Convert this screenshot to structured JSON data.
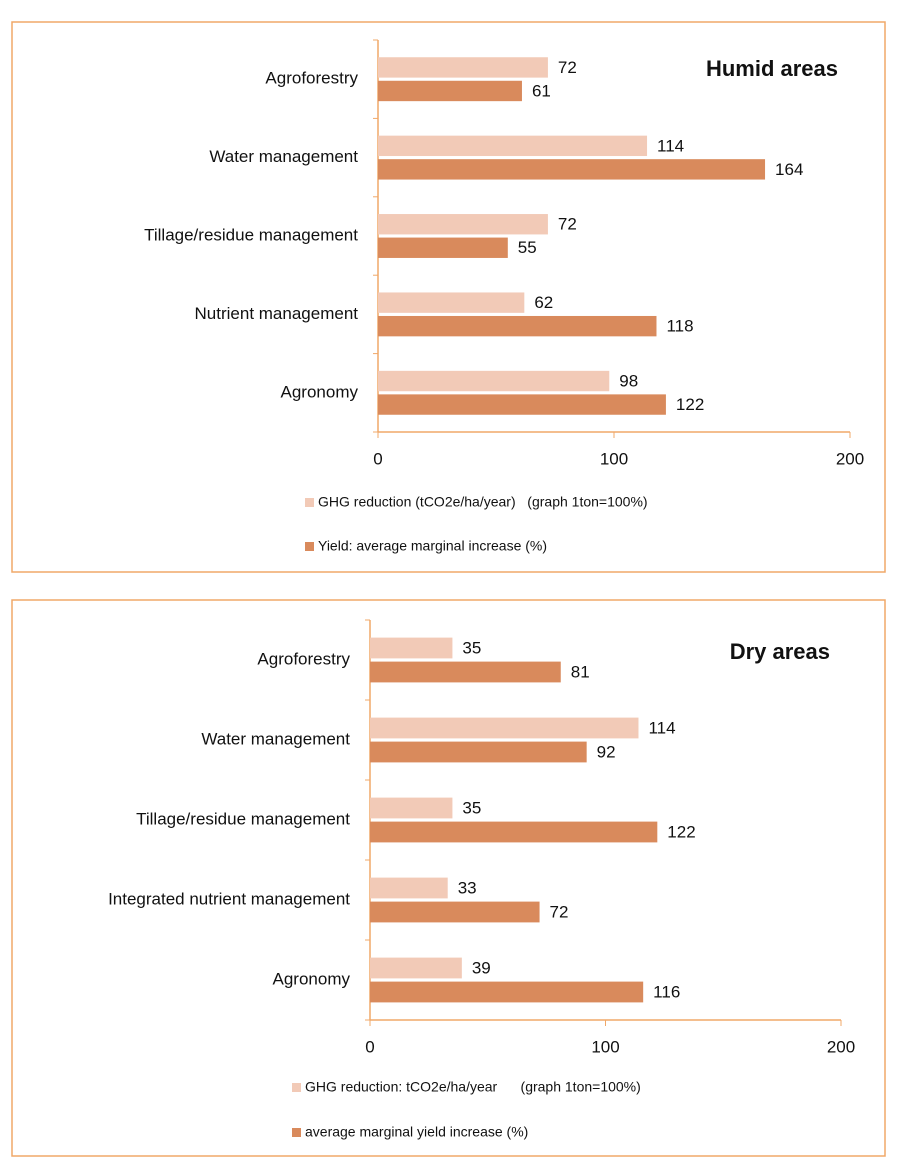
{
  "chart_data": [
    {
      "type": "bar",
      "orientation": "horizontal",
      "title": "Humid areas",
      "categories": [
        "Agroforestry",
        "Water management",
        "Tillage/residue management",
        "Nutrient management",
        "Agronomy"
      ],
      "series": [
        {
          "name": "GHG reduction (tCO2e/ha/year)   (graph 1ton=100%)",
          "color": "#f2cab7",
          "values": [
            72,
            114,
            72,
            62,
            98
          ]
        },
        {
          "name": "Yield: average marginal increase (%)",
          "color": "#d98a5c",
          "values": [
            61,
            164,
            55,
            118,
            122
          ]
        }
      ],
      "xlim": [
        0,
        200
      ],
      "xticks": [
        0,
        100,
        200
      ]
    },
    {
      "type": "bar",
      "orientation": "horizontal",
      "title": "Dry areas",
      "categories": [
        "Agroforestry",
        "Water management",
        "Tillage/residue management",
        "Integrated nutrient management",
        "Agronomy"
      ],
      "series": [
        {
          "name": "GHG reduction: tCO2e/ha/year      (graph 1ton=100%)",
          "color": "#f2cab7",
          "values": [
            35,
            114,
            35,
            33,
            39
          ]
        },
        {
          "name": "average marginal yield increase (%)",
          "color": "#d98a5c",
          "values": [
            81,
            92,
            122,
            72,
            116
          ]
        }
      ],
      "xlim": [
        0,
        200
      ],
      "xticks": [
        0,
        100,
        200
      ]
    }
  ]
}
